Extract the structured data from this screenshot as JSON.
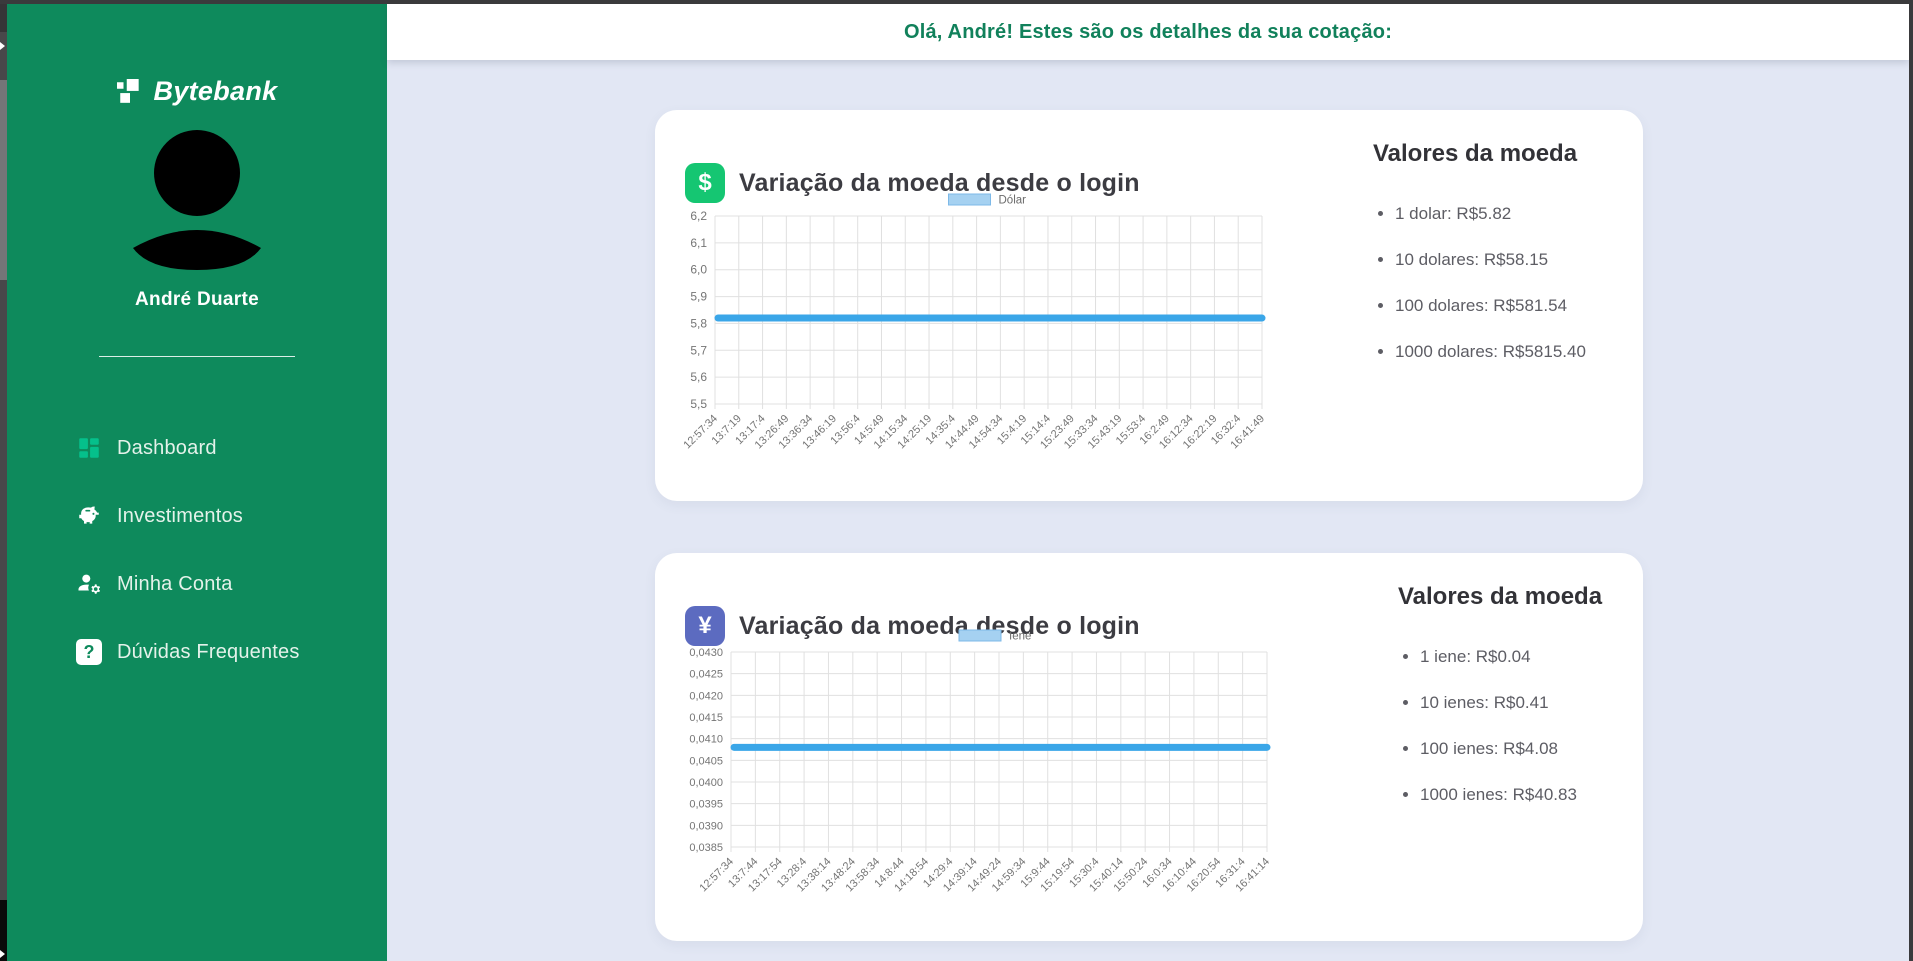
{
  "header": {
    "greeting": "Olá, André! Estes são os detalhes da sua cotação:"
  },
  "sidebar": {
    "logo_text": "Bytebank",
    "logo_icon": "pixel-logo-icon",
    "avatar_icon": "user-avatar-silhouette",
    "user_name": "André Duarte",
    "menu": [
      {
        "label": "Dashboard",
        "icon": "dashboard-grid-icon"
      },
      {
        "label": "Investimentos",
        "icon": "piggy-bank-icon"
      },
      {
        "label": "Minha Conta",
        "icon": "user-gear-icon"
      },
      {
        "label": "Dúvidas Frequentes",
        "icon": "question-mark-icon",
        "icon_glyph": "?"
      }
    ]
  },
  "cards": [
    {
      "title": "Variação da moeda desde o login",
      "icon_symbol": "$",
      "icon_name": "dollar-icon",
      "icon_color": "#15c672",
      "valores": {
        "heading": "Valores da moeda",
        "items": [
          "1 dolar: R$5.82",
          "10 dolares: R$58.15",
          "100 dolares: R$581.54",
          "1000 dolares: R$5815.40"
        ]
      }
    },
    {
      "title": "Variação da moeda desde o login",
      "icon_symbol": "¥",
      "icon_name": "yen-icon",
      "icon_color": "#5c6bc0",
      "valores": {
        "heading": "Valores da moeda",
        "items": [
          "1 iene: R$0.04",
          "10 ienes: R$0.41",
          "100 ienes: R$4.08",
          "1000 ienes: R$40.83"
        ]
      }
    }
  ],
  "chart_data": [
    {
      "type": "line",
      "title": "Variação da moeda desde o login",
      "legend": {
        "label": "Dólar",
        "position": "top",
        "box_fill": "#a5d1f1",
        "box_border": "#7db9e8"
      },
      "grid": true,
      "ylim": [
        5.5,
        6.2
      ],
      "y_tick_values": [
        6.2,
        6.1,
        6.0,
        5.9,
        5.8,
        5.7,
        5.6,
        5.5
      ],
      "y_tick_labels": [
        "6,2",
        "6,1",
        "6,0",
        "5,9",
        "5,8",
        "5,7",
        "5,6",
        "5,5"
      ],
      "x": [
        "12:57:34",
        "13:7:19",
        "13:17:4",
        "13:26:49",
        "13:36:34",
        "13:46:19",
        "13:56:4",
        "14:5:49",
        "14:15:34",
        "14:25:19",
        "14:35:4",
        "14:44:49",
        "14:54:34",
        "15:4:19",
        "15:14:4",
        "15:23:49",
        "15:33:34",
        "15:43:19",
        "15:53:4",
        "16:2:49",
        "16:12:34",
        "16:22:19",
        "16:32:4",
        "16:41:49"
      ],
      "series": [
        {
          "name": "Dólar",
          "color": "#3aa6e8",
          "values": [
            5.82,
            5.82,
            5.82,
            5.82,
            5.82,
            5.82,
            5.82,
            5.82,
            5.82,
            5.82,
            5.82,
            5.82,
            5.82,
            5.82,
            5.82,
            5.82,
            5.82,
            5.82,
            5.82,
            5.82,
            5.82,
            5.82,
            5.82,
            5.82
          ]
        }
      ]
    },
    {
      "type": "line",
      "title": "Variação da moeda desde o login",
      "legend": {
        "label": "Iene",
        "position": "top",
        "box_fill": "#a5d1f1",
        "box_border": "#7db9e8"
      },
      "grid": true,
      "ylim": [
        0.0385,
        0.043
      ],
      "y_tick_values": [
        0.043,
        0.0425,
        0.042,
        0.0415,
        0.041,
        0.0405,
        0.04,
        0.0395,
        0.039,
        0.0385
      ],
      "y_tick_labels": [
        "0,0430",
        "0,0425",
        "0,0420",
        "0,0415",
        "0,0410",
        "0,0405",
        "0,0400",
        "0,0395",
        "0,0390",
        "0,0385"
      ],
      "x": [
        "12:57:34",
        "13:7:44",
        "13:17:54",
        "13:28:4",
        "13:38:14",
        "13:48:24",
        "13:58:34",
        "14:8:44",
        "14:18:54",
        "14:29:4",
        "14:39:14",
        "14:49:24",
        "14:59:34",
        "15:9:44",
        "15:19:54",
        "15:30:4",
        "15:40:14",
        "15:50:24",
        "16:0:34",
        "16:10:44",
        "16:20:54",
        "16:31:4",
        "16:41:14"
      ],
      "series": [
        {
          "name": "Iene",
          "color": "#3aa6e8",
          "values": [
            0.0408,
            0.0408,
            0.0408,
            0.0408,
            0.0408,
            0.0408,
            0.0408,
            0.0408,
            0.0408,
            0.0408,
            0.0408,
            0.0408,
            0.0408,
            0.0408,
            0.0408,
            0.0408,
            0.0408,
            0.0408,
            0.0408,
            0.0408,
            0.0408,
            0.0408,
            0.0408
          ]
        }
      ]
    }
  ],
  "colors": {
    "sidebar_green": "#0e8a5c",
    "dashboard_icon_green": "#05c08b",
    "dollar_icon_green": "#15c672",
    "yen_icon_indigo": "#5c6bc0",
    "header_text_green": "#11815b",
    "chart_line_blue": "#3aa6e8",
    "content_background": "#e2e7f4",
    "grid_line": "#e0e0e0",
    "tick_text": "#757575"
  }
}
